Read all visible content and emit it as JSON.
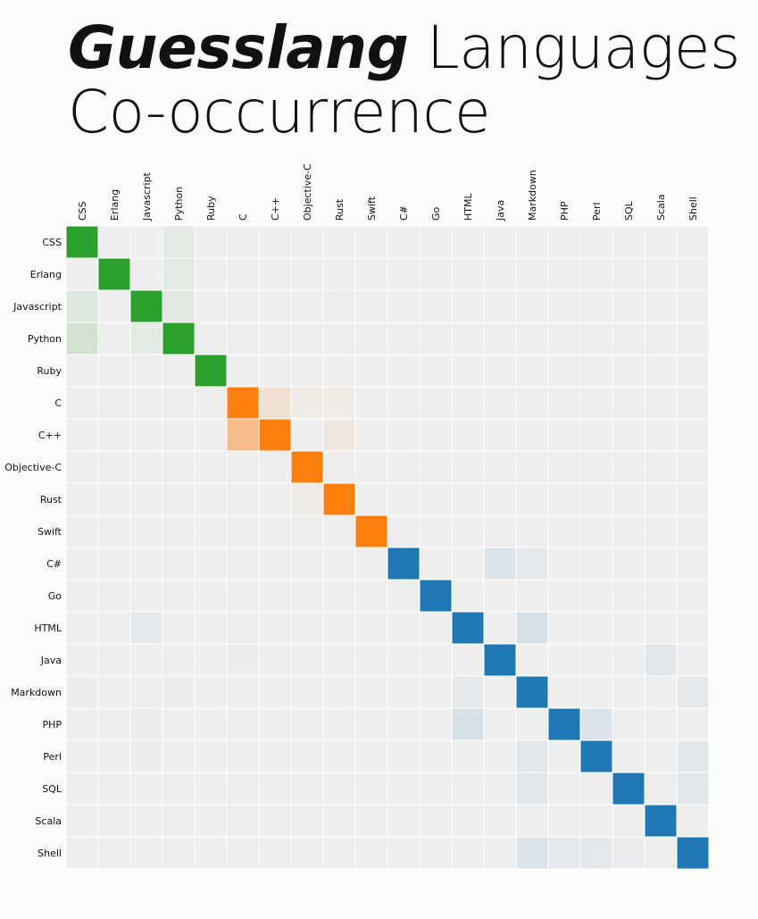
{
  "title": {
    "brand": "Guesslang",
    "line1_rest": "Languages",
    "line2": "Co-occurrence"
  },
  "chart_data": {
    "type": "heatmap",
    "title": "Guesslang Languages Co-occurrence",
    "x_labels": [
      "CSS",
      "Erlang",
      "Javascript",
      "Python",
      "Ruby",
      "C",
      "C++",
      "Objective-C",
      "Rust",
      "Swift",
      "C#",
      "Go",
      "HTML",
      "Java",
      "Markdown",
      "PHP",
      "Perl",
      "SQL",
      "Scala",
      "Shell"
    ],
    "y_labels": [
      "CSS",
      "Erlang",
      "Javascript",
      "Python",
      "Ruby",
      "C",
      "C++",
      "Objective-C",
      "Rust",
      "Swift",
      "C#",
      "Go",
      "HTML",
      "Java",
      "Markdown",
      "PHP",
      "Perl",
      "SQL",
      "Scala",
      "Shell"
    ],
    "x_axis_position": "top",
    "groups": [
      {
        "members": [
          "CSS",
          "Erlang",
          "Javascript",
          "Python",
          "Ruby"
        ],
        "color": "#2ca02c"
      },
      {
        "members": [
          "C",
          "C++",
          "Objective-C",
          "Rust",
          "Swift"
        ],
        "color": "#ff7f0e"
      },
      {
        "members": [
          "C#",
          "Go",
          "HTML",
          "Java",
          "Markdown",
          "PHP",
          "Perl",
          "SQL",
          "Scala",
          "Shell"
        ],
        "color": "#1f77b4"
      }
    ],
    "background_color": "#eeeeee",
    "values": [
      [
        1.0,
        0.0,
        0.0,
        0.05,
        0.0,
        0.0,
        0.0,
        0.0,
        0.0,
        0.0,
        0.0,
        0.0,
        0.0,
        0.0,
        0.0,
        0.0,
        0.0,
        0.0,
        0.0,
        0.0
      ],
      [
        0.0,
        1.0,
        0.0,
        0.05,
        0.0,
        0.0,
        0.0,
        0.0,
        0.0,
        0.0,
        0.0,
        0.0,
        0.0,
        0.0,
        0.0,
        0.0,
        0.0,
        0.0,
        0.0,
        0.0
      ],
      [
        0.08,
        0.0,
        1.0,
        0.06,
        0.0,
        0.0,
        0.0,
        0.0,
        0.01,
        0.0,
        0.0,
        0.0,
        0.0,
        0.0,
        0.0,
        0.0,
        0.0,
        0.0,
        0.0,
        0.0
      ],
      [
        0.15,
        0.0,
        0.05,
        1.0,
        0.0,
        0.0,
        0.0,
        0.0,
        0.0,
        0.0,
        0.0,
        0.0,
        0.0,
        0.0,
        0.0,
        0.0,
        0.0,
        0.0,
        0.0,
        0.01
      ],
      [
        0.0,
        0.0,
        0.0,
        0.0,
        1.0,
        0.0,
        0.0,
        0.0,
        0.0,
        0.0,
        0.0,
        0.0,
        0.0,
        0.0,
        0.0,
        0.0,
        0.0,
        0.0,
        0.0,
        0.0
      ],
      [
        0.0,
        0.0,
        0.0,
        0.0,
        0.0,
        1.0,
        0.12,
        0.03,
        0.03,
        0.0,
        0.0,
        0.0,
        0.0,
        0.0,
        0.0,
        0.0,
        0.0,
        0.0,
        0.0,
        0.0
      ],
      [
        0.0,
        0.0,
        0.0,
        0.0,
        0.0,
        0.45,
        1.0,
        0.0,
        0.06,
        0.0,
        0.0,
        0.0,
        0.0,
        0.0,
        0.0,
        0.0,
        0.0,
        0.0,
        0.0,
        0.0
      ],
      [
        0.0,
        0.0,
        0.0,
        0.0,
        0.0,
        0.0,
        0.0,
        1.0,
        0.0,
        0.0,
        0.0,
        0.0,
        0.0,
        0.0,
        0.0,
        0.0,
        0.0,
        0.0,
        0.0,
        0.0
      ],
      [
        0.0,
        0.0,
        0.0,
        0.0,
        0.0,
        0.0,
        0.0,
        0.03,
        1.0,
        0.0,
        0.0,
        0.0,
        0.0,
        0.0,
        0.0,
        0.0,
        0.0,
        0.0,
        0.0,
        0.0
      ],
      [
        0.0,
        0.0,
        0.0,
        0.0,
        0.0,
        0.0,
        0.0,
        0.0,
        0.0,
        1.0,
        0.0,
        0.0,
        0.0,
        0.0,
        0.0,
        0.0,
        0.0,
        0.0,
        0.0,
        0.0
      ],
      [
        0.0,
        0.0,
        0.0,
        0.0,
        0.0,
        0.0,
        0.0,
        0.0,
        0.0,
        0.0,
        1.0,
        0.0,
        0.0,
        0.08,
        0.04,
        0.0,
        0.0,
        0.0,
        0.0,
        0.0
      ],
      [
        0.0,
        0.0,
        0.0,
        0.0,
        0.0,
        0.0,
        0.0,
        0.0,
        0.0,
        0.0,
        0.0,
        1.0,
        0.0,
        0.0,
        0.0,
        0.0,
        0.0,
        0.0,
        0.0,
        0.0
      ],
      [
        0.0,
        0.0,
        0.05,
        0.0,
        0.0,
        0.0,
        0.0,
        0.0,
        0.0,
        0.0,
        0.0,
        0.0,
        1.0,
        0.0,
        0.12,
        0.0,
        0.0,
        0.0,
        0.0,
        0.0
      ],
      [
        0.0,
        0.0,
        0.0,
        0.0,
        0.0,
        0.02,
        0.0,
        0.0,
        0.0,
        0.0,
        0.0,
        0.0,
        0.0,
        1.0,
        0.0,
        0.0,
        0.0,
        0.0,
        0.06,
        0.0
      ],
      [
        0.02,
        0.0,
        0.0,
        0.02,
        0.0,
        0.0,
        0.0,
        0.0,
        0.0,
        0.0,
        0.0,
        0.0,
        0.05,
        0.0,
        1.0,
        0.0,
        0.0,
        0.0,
        0.0,
        0.05
      ],
      [
        0.0,
        0.0,
        0.02,
        0.0,
        0.0,
        0.0,
        0.0,
        0.0,
        0.0,
        0.0,
        0.0,
        0.0,
        0.12,
        0.0,
        0.0,
        1.0,
        0.08,
        0.0,
        0.0,
        0.0
      ],
      [
        0.0,
        0.0,
        0.02,
        0.0,
        0.0,
        0.0,
        0.0,
        0.0,
        0.0,
        0.0,
        0.0,
        0.0,
        0.0,
        0.0,
        0.07,
        0.0,
        1.0,
        0.0,
        0.0,
        0.06
      ],
      [
        0.0,
        0.0,
        0.0,
        0.0,
        0.0,
        0.0,
        0.0,
        0.0,
        0.0,
        0.0,
        0.0,
        0.0,
        0.0,
        0.0,
        0.06,
        0.0,
        0.0,
        1.0,
        0.0,
        0.06
      ],
      [
        0.0,
        0.0,
        0.0,
        0.0,
        0.0,
        0.0,
        0.0,
        0.0,
        0.0,
        0.0,
        0.0,
        0.0,
        0.0,
        0.0,
        0.0,
        0.0,
        0.0,
        0.0,
        1.0,
        0.0
      ],
      [
        0.0,
        0.0,
        0.0,
        0.0,
        0.0,
        0.0,
        0.0,
        0.0,
        0.0,
        0.0,
        0.0,
        0.0,
        0.0,
        0.0,
        0.08,
        0.04,
        0.05,
        0.02,
        0.0,
        1.0
      ]
    ]
  }
}
